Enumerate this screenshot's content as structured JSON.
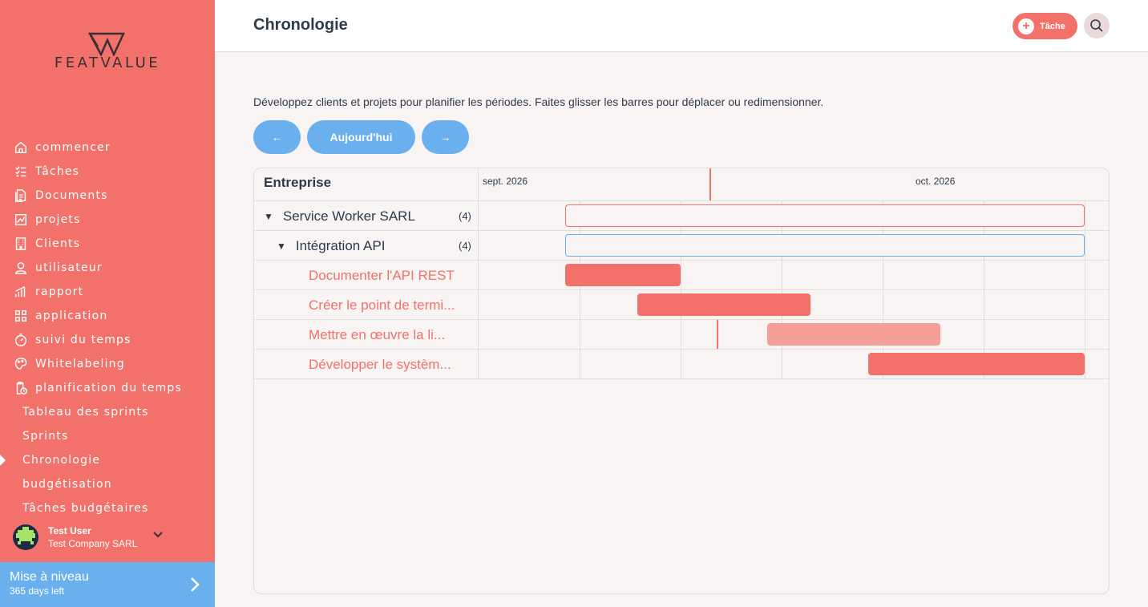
{
  "brand": {
    "name": "FEATVALUE",
    "accent": "#f2716b",
    "blue": "#6ab0ef"
  },
  "sidebar": {
    "items": [
      {
        "label": "commencer",
        "icon": "home-icon"
      },
      {
        "label": "Tâches",
        "icon": "checklist-icon"
      },
      {
        "label": "Documents",
        "icon": "documents-icon"
      },
      {
        "label": "projets",
        "icon": "chart-file-icon"
      },
      {
        "label": "Clients",
        "icon": "building-icon"
      },
      {
        "label": "utilisateur",
        "icon": "user-icon"
      },
      {
        "label": "rapport",
        "icon": "report-icon"
      },
      {
        "label": "application",
        "icon": "apps-icon"
      },
      {
        "label": "suivi du temps",
        "icon": "stopwatch-icon"
      },
      {
        "label": "Whitelabeling",
        "icon": "palette-icon"
      },
      {
        "label": "planification du temps",
        "icon": "clipboard-clock-icon"
      }
    ],
    "subitems": [
      {
        "label": "Tableau des sprints",
        "active": false
      },
      {
        "label": "Sprints",
        "active": false
      },
      {
        "label": "Chronologie",
        "active": true
      },
      {
        "label": "budgétisation",
        "active": false
      },
      {
        "label": "Tâches budgétaires",
        "active": false
      }
    ],
    "user": {
      "name": "Test User",
      "company": "Test Company SARL"
    },
    "upgrade": {
      "title": "Mise à niveau",
      "subtitle": "365 days left"
    }
  },
  "header": {
    "title": "Chronologie",
    "task_button": "Tâche"
  },
  "main": {
    "intro": "Développez clients et projets pour planifier les périodes. Faites glisser les barres pour déplacer ou redimensionner.",
    "prev_label": "←",
    "today_label": "Aujourd'hui",
    "next_label": "→"
  },
  "timeline": {
    "column_header": "Entreprise",
    "months": [
      "sept. 2026",
      "oct. 2026"
    ],
    "rows": [
      {
        "label": "Service Worker SARL",
        "count": "(4)",
        "level": 0,
        "kind": "client"
      },
      {
        "label": "Intégration API",
        "count": "(4)",
        "level": 1,
        "kind": "project"
      },
      {
        "label": "Documenter l'API REST",
        "level": 2,
        "kind": "task"
      },
      {
        "label": "Créer le point de termi...",
        "level": 2,
        "kind": "task"
      },
      {
        "label": "Mettre en œuvre la li...",
        "level": 2,
        "kind": "task"
      },
      {
        "label": "Développer le systèm...",
        "level": 2,
        "kind": "task"
      }
    ]
  }
}
